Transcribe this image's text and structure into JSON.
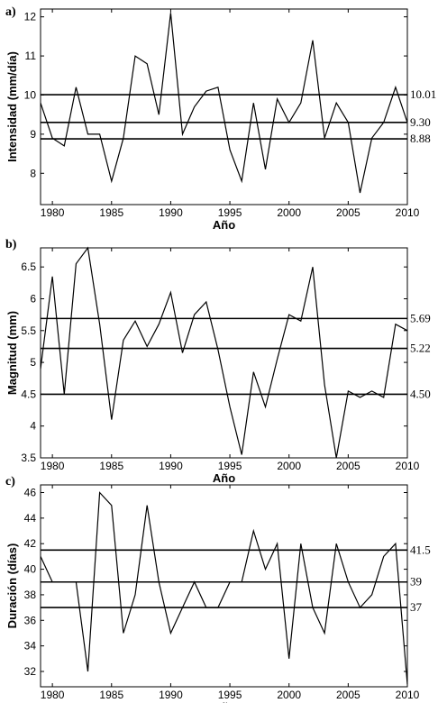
{
  "chart_data": [
    {
      "type": "line",
      "panel_label": "a)",
      "xlabel": "Año",
      "ylabel": "Intensidad (mm/día)",
      "xlim": [
        1979,
        2010
      ],
      "ylim": [
        7.2,
        12.2
      ],
      "xticks": [
        1980,
        1985,
        1990,
        1995,
        2000,
        2005,
        2010
      ],
      "yticks": [
        8,
        9,
        10,
        11,
        12
      ],
      "x": [
        1979,
        1980,
        1981,
        1982,
        1983,
        1984,
        1985,
        1986,
        1987,
        1988,
        1989,
        1990,
        1991,
        1992,
        1993,
        1994,
        1995,
        1996,
        1997,
        1998,
        1999,
        2000,
        2001,
        2002,
        2003,
        2004,
        2005,
        2006,
        2007,
        2008,
        2009,
        2010
      ],
      "values": [
        9.8,
        8.9,
        8.7,
        10.2,
        9.0,
        9.0,
        7.8,
        8.9,
        11.0,
        10.8,
        9.5,
        12.1,
        9.0,
        9.7,
        10.1,
        10.2,
        8.6,
        7.8,
        9.8,
        8.1,
        9.9,
        9.3,
        9.8,
        11.4,
        8.9,
        9.8,
        9.3,
        7.5,
        8.9,
        9.3,
        10.2,
        9.3
      ],
      "reference_lines": [
        {
          "value": 10.01,
          "label": "10.01"
        },
        {
          "value": 9.3,
          "label": "9.30"
        },
        {
          "value": 8.88,
          "label": "8.88"
        }
      ]
    },
    {
      "type": "line",
      "panel_label": "b)",
      "xlabel": "Año",
      "ylabel": "Magnitud (mm)",
      "xlim": [
        1979,
        2010
      ],
      "ylim": [
        3.5,
        6.8
      ],
      "xticks": [
        1980,
        1985,
        1990,
        1995,
        2000,
        2005,
        2010
      ],
      "yticks": [
        3.5,
        4,
        4.5,
        5,
        5.5,
        6,
        6.5
      ],
      "ytick_labels": [
        "3.5",
        "4",
        "4.5",
        "5",
        "5.5",
        "6",
        "6.5"
      ],
      "x": [
        1979,
        1980,
        1981,
        1982,
        1983,
        1984,
        1985,
        1986,
        1987,
        1988,
        1989,
        1990,
        1991,
        1992,
        1993,
        1994,
        1995,
        1996,
        1997,
        1998,
        1999,
        2000,
        2001,
        2002,
        2003,
        2004,
        2005,
        2006,
        2007,
        2008,
        2009,
        2010
      ],
      "values": [
        4.9,
        6.35,
        4.5,
        6.55,
        6.8,
        5.6,
        4.1,
        5.35,
        5.65,
        5.25,
        5.6,
        6.1,
        5.15,
        5.75,
        5.95,
        5.2,
        4.3,
        3.55,
        4.85,
        4.3,
        5.05,
        5.75,
        5.65,
        6.5,
        4.65,
        3.5,
        4.55,
        4.45,
        4.55,
        4.45,
        5.6,
        5.5
      ],
      "reference_lines": [
        {
          "value": 5.69,
          "label": "5.69"
        },
        {
          "value": 5.22,
          "label": "5.22"
        },
        {
          "value": 4.5,
          "label": "4.50"
        }
      ]
    },
    {
      "type": "line",
      "panel_label": "c)",
      "xlabel": "Año",
      "ylabel": "Duración (días)",
      "xlim": [
        1979,
        2010
      ],
      "ylim": [
        30.8,
        46.6
      ],
      "xticks": [
        1980,
        1985,
        1990,
        1995,
        2000,
        2005,
        2010
      ],
      "yticks": [
        32,
        34,
        36,
        38,
        40,
        42,
        44,
        46
      ],
      "x": [
        1979,
        1980,
        1981,
        1982,
        1983,
        1984,
        1985,
        1986,
        1987,
        1988,
        1989,
        1990,
        1991,
        1992,
        1993,
        1994,
        1995,
        1996,
        1997,
        1998,
        1999,
        2000,
        2001,
        2002,
        2003,
        2004,
        2005,
        2006,
        2007,
        2008,
        2009,
        2010
      ],
      "values": [
        41,
        39,
        39,
        39,
        32,
        46,
        45,
        35,
        38,
        45,
        39,
        35,
        37,
        39,
        37,
        37,
        39,
        39,
        43,
        40,
        42,
        33,
        42,
        37,
        35,
        42,
        39,
        37,
        38,
        41,
        42,
        31
      ],
      "reference_lines": [
        {
          "value": 41.5,
          "label": "41.5"
        },
        {
          "value": 39,
          "label": "39"
        },
        {
          "value": 37,
          "label": "37"
        }
      ]
    }
  ]
}
